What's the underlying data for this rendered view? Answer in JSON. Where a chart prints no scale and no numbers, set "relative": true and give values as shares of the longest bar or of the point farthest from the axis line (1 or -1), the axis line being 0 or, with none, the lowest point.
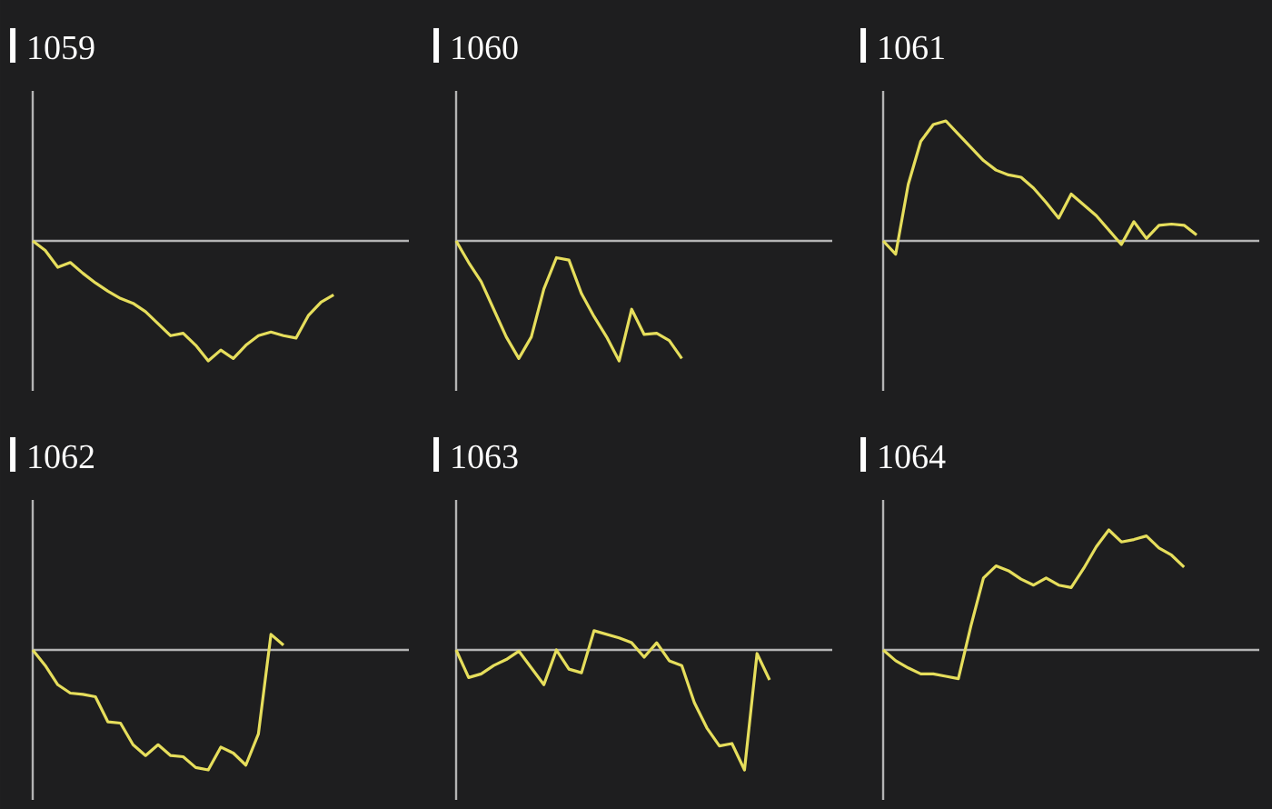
{
  "chart_data": [
    {
      "type": "line",
      "title": "1059",
      "relative": true,
      "color": "#e6de5c",
      "categories": [
        null,
        null,
        null,
        null,
        null,
        null,
        null,
        null,
        null,
        null,
        null,
        null,
        null,
        null,
        null,
        null,
        null,
        null,
        null,
        null,
        null,
        null,
        null,
        null,
        null,
        null,
        null,
        null,
        null,
        null,
        null
      ],
      "values": [
        0,
        -0.08,
        -0.22,
        -0.18,
        -0.27,
        -0.35,
        -0.42,
        -0.48,
        -0.52,
        -0.59,
        -0.69,
        -0.79,
        -0.77,
        -0.87,
        -1,
        -0.91,
        -0.98,
        -0.87,
        -0.79,
        -0.76,
        -0.79,
        -0.81,
        -0.62,
        -0.51,
        -0.45,
        null,
        null,
        null,
        null,
        null,
        null
      ]
    },
    {
      "type": "line",
      "title": "1060",
      "relative": true,
      "color": "#e6de5c",
      "categories": [
        null,
        null,
        null,
        null,
        null,
        null,
        null,
        null,
        null,
        null,
        null,
        null,
        null,
        null,
        null,
        null,
        null,
        null,
        null,
        null,
        null,
        null,
        null,
        null,
        null,
        null,
        null,
        null,
        null,
        null,
        null
      ],
      "values": [
        0,
        -0.18,
        -0.34,
        -0.57,
        -0.8,
        -0.98,
        -0.8,
        -0.4,
        -0.14,
        -0.16,
        -0.44,
        -0.63,
        -0.8,
        -1,
        -0.57,
        -0.78,
        -0.77,
        -0.83,
        -0.98,
        null,
        null,
        null,
        null,
        null,
        null,
        null,
        null,
        null,
        null,
        null,
        null
      ]
    },
    {
      "type": "line",
      "title": "1061",
      "relative": true,
      "color": "#e6de5c",
      "categories": [
        null,
        null,
        null,
        null,
        null,
        null,
        null,
        null,
        null,
        null,
        null,
        null,
        null,
        null,
        null,
        null,
        null,
        null,
        null,
        null,
        null,
        null,
        null,
        null,
        null,
        null,
        null,
        null,
        null,
        null,
        null
      ],
      "values": [
        0,
        -0.11,
        0.47,
        0.83,
        0.97,
        1,
        0.89,
        0.78,
        0.67,
        0.59,
        0.55,
        0.53,
        0.44,
        0.32,
        0.19,
        0.39,
        0.3,
        0.21,
        0.09,
        -0.03,
        0.16,
        0.02,
        0.13,
        0.14,
        0.13,
        0.05,
        null,
        null,
        null,
        null,
        null
      ]
    },
    {
      "type": "line",
      "title": "1062",
      "relative": true,
      "color": "#e6de5c",
      "categories": [
        null,
        null,
        null,
        null,
        null,
        null,
        null,
        null,
        null,
        null,
        null,
        null,
        null,
        null,
        null,
        null,
        null,
        null,
        null,
        null,
        null,
        null,
        null,
        null,
        null,
        null,
        null,
        null,
        null,
        null,
        null
      ],
      "values": [
        0,
        -0.13,
        -0.29,
        -0.36,
        -0.37,
        -0.39,
        -0.6,
        -0.61,
        -0.79,
        -0.88,
        -0.79,
        -0.88,
        -0.89,
        -0.98,
        -1,
        -0.81,
        -0.86,
        -0.96,
        -0.7,
        0.13,
        0.04,
        null,
        null,
        null,
        null,
        null,
        null,
        null,
        null,
        null,
        null
      ]
    },
    {
      "type": "line",
      "title": "1063",
      "relative": true,
      "color": "#e6de5c",
      "categories": [
        null,
        null,
        null,
        null,
        null,
        null,
        null,
        null,
        null,
        null,
        null,
        null,
        null,
        null,
        null,
        null,
        null,
        null,
        null,
        null,
        null,
        null,
        null,
        null,
        null,
        null,
        null,
        null,
        null,
        null,
        null
      ],
      "values": [
        0,
        -0.23,
        -0.2,
        -0.13,
        -0.08,
        -0.01,
        -0.15,
        -0.29,
        0,
        -0.16,
        -0.19,
        0.16,
        0.13,
        0.1,
        0.06,
        -0.06,
        0.06,
        -0.09,
        -0.13,
        -0.44,
        -0.65,
        -0.8,
        -0.78,
        -1,
        -0.03,
        -0.25,
        null,
        null,
        null,
        null,
        null
      ]
    },
    {
      "type": "line",
      "title": "1064",
      "relative": true,
      "color": "#e6de5c",
      "categories": [
        null,
        null,
        null,
        null,
        null,
        null,
        null,
        null,
        null,
        null,
        null,
        null,
        null,
        null,
        null,
        null,
        null,
        null,
        null,
        null,
        null,
        null,
        null,
        null,
        null,
        null,
        null,
        null,
        null,
        null,
        null
      ],
      "values": [
        0,
        -0.09,
        -0.15,
        -0.2,
        -0.2,
        -0.22,
        -0.24,
        0.2,
        0.6,
        0.7,
        0.66,
        0.59,
        0.54,
        0.6,
        0.54,
        0.52,
        0.68,
        0.86,
        1,
        0.9,
        0.92,
        0.95,
        0.85,
        0.79,
        0.69,
        null,
        null,
        null,
        null,
        null,
        null
      ]
    }
  ]
}
